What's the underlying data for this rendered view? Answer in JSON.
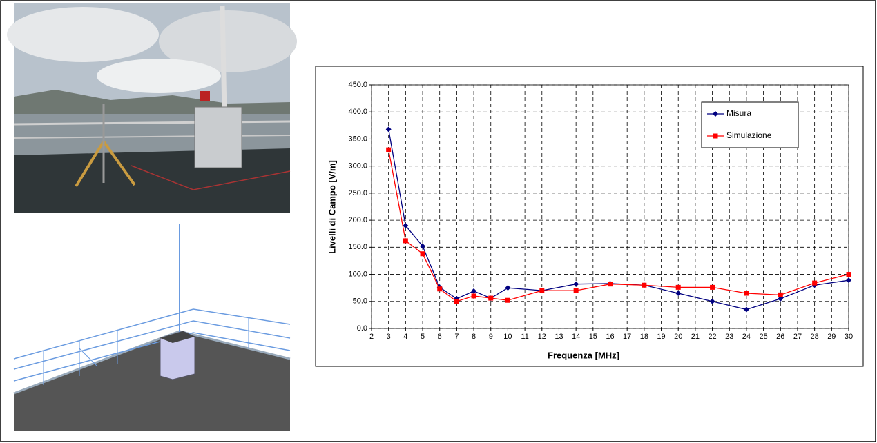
{
  "chart_data": {
    "type": "line",
    "x_label": "Frequenza [MHz]",
    "y_label": "Livelli di Campo [V/m]",
    "x": [
      3,
      4,
      5,
      6,
      7,
      8,
      9,
      10,
      12,
      14,
      16,
      18,
      20,
      22,
      24,
      26,
      28,
      30
    ],
    "series": [
      {
        "name": "Misura",
        "color": "#000080",
        "marker": "diamond",
        "values": [
          368,
          190,
          152,
          76,
          55,
          69,
          56,
          75,
          70,
          82,
          83,
          80,
          65,
          50,
          35,
          55,
          80,
          89
        ]
      },
      {
        "name": "Simulazione",
        "color": "#ff0000",
        "marker": "square",
        "values": [
          330,
          162,
          138,
          73,
          50,
          60,
          56,
          52,
          70,
          70,
          82,
          80,
          76,
          76,
          65,
          62,
          84,
          100
        ]
      }
    ],
    "xlim": [
      2,
      30
    ],
    "xticks": [
      2,
      3,
      4,
      5,
      6,
      7,
      8,
      9,
      10,
      11,
      12,
      13,
      14,
      15,
      16,
      17,
      18,
      19,
      20,
      21,
      22,
      23,
      24,
      25,
      26,
      27,
      28,
      29,
      30
    ],
    "ylim": [
      0,
      450
    ],
    "yticks": [
      {
        "value": 0,
        "label": "0.0"
      },
      {
        "value": 50,
        "label": "50.0"
      },
      {
        "value": 100,
        "label": "100.0"
      },
      {
        "value": 150,
        "label": "150.0"
      },
      {
        "value": 200,
        "label": "200.0"
      },
      {
        "value": 250,
        "label": "250.0"
      },
      {
        "value": 300,
        "label": "300.0"
      },
      {
        "value": 350,
        "label": "350.0"
      },
      {
        "value": 400,
        "label": "400.0"
      },
      {
        "value": 450,
        "label": "450.0"
      }
    ],
    "grid": true,
    "legend": "upper right"
  }
}
